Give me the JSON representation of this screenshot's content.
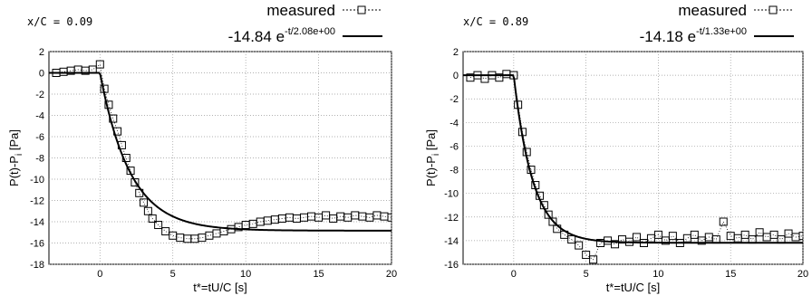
{
  "chart_data": [
    {
      "type": "scatter+line",
      "annotation": "x/C = 0.09",
      "xlabel": "t*=tU/C [s]",
      "ylabel": "P(t)-P",
      "ylabel_sub": "i",
      "ylabel_unit": " [Pa]",
      "xlim": [
        -3.5,
        20
      ],
      "ylim": [
        -18,
        2
      ],
      "xticks": [
        0,
        5,
        10,
        15,
        20
      ],
      "yticks": [
        2,
        0,
        -2,
        -4,
        -6,
        -8,
        -10,
        -12,
        -14,
        -16,
        -18
      ],
      "grid": true,
      "legend_position": "top-right",
      "legend": [
        {
          "label": "measured",
          "style": "dotted-square"
        },
        {
          "label_main": "-14.84 e",
          "label_sup": "-t/2.08e+00",
          "style": "solid"
        }
      ],
      "fit": {
        "amplitude": -14.84,
        "tau": 2.08,
        "t0": 0
      },
      "measured": {
        "x": [
          -3.0,
          -2.5,
          -2.0,
          -1.5,
          -1.0,
          -0.5,
          0.0,
          0.3,
          0.6,
          0.9,
          1.2,
          1.5,
          1.8,
          2.1,
          2.4,
          2.7,
          3.0,
          3.3,
          3.6,
          4.0,
          4.5,
          5.0,
          5.5,
          6.0,
          6.5,
          7.0,
          7.5,
          8.0,
          8.5,
          9.0,
          9.5,
          10.0,
          10.5,
          11.0,
          11.5,
          12.0,
          12.5,
          13.0,
          13.5,
          14.0,
          14.5,
          15.0,
          15.5,
          16.0,
          16.5,
          17.0,
          17.5,
          18.0,
          18.5,
          19.0,
          19.5,
          20.0
        ],
        "y": [
          0.0,
          0.1,
          0.2,
          0.3,
          0.2,
          0.3,
          0.8,
          -1.5,
          -3.0,
          -4.3,
          -5.5,
          -6.8,
          -8.0,
          -9.2,
          -10.3,
          -11.3,
          -12.2,
          -13.0,
          -13.7,
          -14.3,
          -14.9,
          -15.3,
          -15.5,
          -15.6,
          -15.6,
          -15.5,
          -15.3,
          -15.1,
          -14.9,
          -14.7,
          -14.5,
          -14.3,
          -14.2,
          -14.0,
          -13.9,
          -13.8,
          -13.7,
          -13.6,
          -13.7,
          -13.6,
          -13.5,
          -13.6,
          -13.4,
          -13.7,
          -13.5,
          -13.6,
          -13.4,
          -13.5,
          -13.6,
          -13.4,
          -13.5,
          -13.6
        ]
      }
    },
    {
      "type": "scatter+line",
      "annotation": "x/C = 0.89",
      "xlabel": "t*=tU/C [s]",
      "ylabel": "P(t)-P",
      "ylabel_sub": "i",
      "ylabel_unit": " [Pa]",
      "xlim": [
        -3.5,
        20
      ],
      "ylim": [
        -16,
        2
      ],
      "xticks": [
        0,
        5,
        10,
        15,
        20
      ],
      "yticks": [
        2,
        0,
        -2,
        -4,
        -6,
        -8,
        -10,
        -12,
        -14,
        -16
      ],
      "grid": true,
      "legend_position": "top-right",
      "legend": [
        {
          "label": "measured",
          "style": "dotted-square"
        },
        {
          "label_main": "-14.18 e",
          "label_sup": "-t/1.33e+00",
          "style": "solid"
        }
      ],
      "fit": {
        "amplitude": -14.18,
        "tau": 1.33,
        "t0": 0
      },
      "measured": {
        "x": [
          -3.0,
          -2.5,
          -2.0,
          -1.5,
          -1.0,
          -0.5,
          0.0,
          0.3,
          0.6,
          0.9,
          1.2,
          1.5,
          1.8,
          2.1,
          2.4,
          2.7,
          3.0,
          3.5,
          4.0,
          4.5,
          5.0,
          5.5,
          6.0,
          6.5,
          7.0,
          7.5,
          8.0,
          8.5,
          9.0,
          9.5,
          10.0,
          10.5,
          11.0,
          11.5,
          12.0,
          12.5,
          13.0,
          13.5,
          14.0,
          14.5,
          15.0,
          15.5,
          16.0,
          16.5,
          17.0,
          17.5,
          18.0,
          18.5,
          19.0,
          19.5,
          20.0
        ],
        "y": [
          -0.2,
          0.0,
          -0.3,
          0.0,
          -0.2,
          0.1,
          0.0,
          -2.5,
          -4.8,
          -6.5,
          -8.0,
          -9.3,
          -10.2,
          -11.0,
          -11.8,
          -12.4,
          -13.0,
          -13.5,
          -13.9,
          -14.4,
          -15.2,
          -15.6,
          -14.2,
          -14.0,
          -14.3,
          -13.9,
          -14.1,
          -13.7,
          -14.2,
          -13.8,
          -13.5,
          -14.0,
          -13.6,
          -14.2,
          -13.8,
          -13.5,
          -14.0,
          -13.7,
          -13.9,
          -12.4,
          -13.6,
          -13.8,
          -13.5,
          -13.9,
          -13.3,
          -13.7,
          -13.5,
          -13.9,
          -13.4,
          -13.7,
          -13.6
        ]
      }
    }
  ]
}
